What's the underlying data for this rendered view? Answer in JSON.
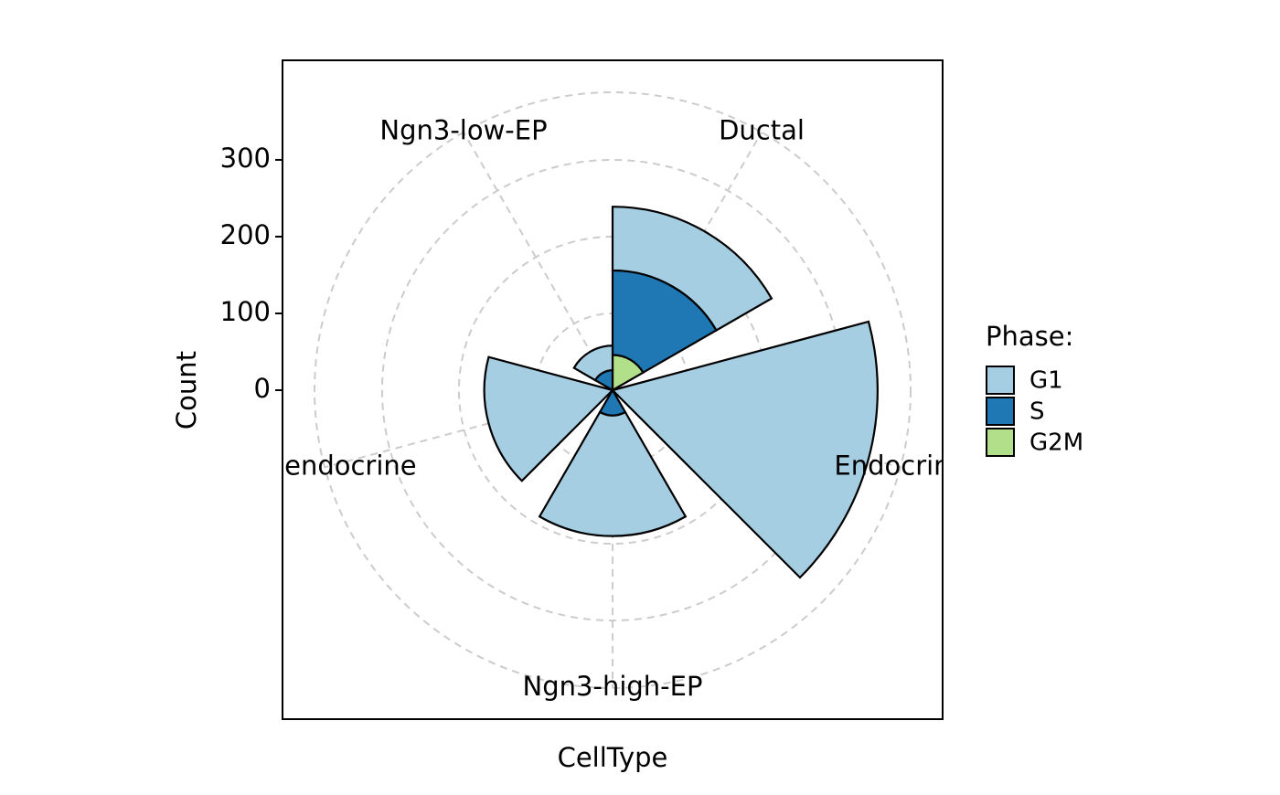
{
  "chart_data": {
    "type": "polar-bar",
    "x_label": "CellType",
    "y_label": "Count",
    "categories": [
      "Ductal",
      "Endocrine",
      "Ngn3-high-EP",
      "Pre-endocrine",
      "Ngn3-low-EP"
    ],
    "series": [
      {
        "name": "G1",
        "color": "#a6cee3",
        "values": [
          83,
          345,
          157,
          167,
          32
        ]
      },
      {
        "name": "S",
        "color": "#1f78b4",
        "values": [
          110,
          0,
          33,
          0,
          26
        ]
      },
      {
        "name": "G2M",
        "color": "#b2df8a",
        "values": [
          46,
          0,
          0,
          0,
          0
        ]
      }
    ],
    "legend_title": "Phase:",
    "ylim": [
      0,
      388
    ],
    "yticks": [
      0,
      100,
      200,
      300
    ],
    "grid": true
  }
}
